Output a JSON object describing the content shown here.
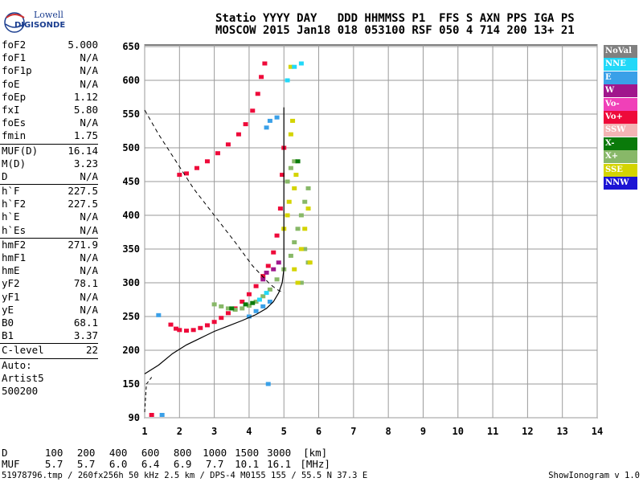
{
  "header": {
    "line1": "Statio YYYY DAY   DDD HHMMSS P1  FFS S AXN PPS IGA PS",
    "line2": "MOSCOW 2015 Jan18 018 053100 RSF 050 4 714 200 13+ 21"
  },
  "logo": {
    "brand1": "Lowell",
    "brand2": "DIGISONDE"
  },
  "params": [
    [
      {
        "label": "foF2",
        "value": "5.000"
      },
      {
        "label": "foF1",
        "value": "N/A"
      },
      {
        "label": "foF1p",
        "value": "N/A"
      },
      {
        "label": "foE",
        "value": "N/A"
      },
      {
        "label": "foEp",
        "value": "1.12"
      },
      {
        "label": "fxI",
        "value": "5.80"
      },
      {
        "label": "foEs",
        "value": "N/A"
      },
      {
        "label": "fmin",
        "value": "1.75"
      }
    ],
    [
      {
        "label": "MUF(D)",
        "value": "16.14"
      },
      {
        "label": "M(D)",
        "value": "3.23"
      },
      {
        "label": "D",
        "value": "N/A"
      }
    ],
    [
      {
        "label": "h`F",
        "value": "227.5"
      },
      {
        "label": "h`F2",
        "value": "227.5"
      },
      {
        "label": "h`E",
        "value": "N/A"
      },
      {
        "label": "h`Es",
        "value": "N/A"
      }
    ],
    [
      {
        "label": "hmF2",
        "value": "271.9"
      },
      {
        "label": "hmF1",
        "value": "N/A"
      },
      {
        "label": "hmE",
        "value": "N/A"
      },
      {
        "label": "yF2",
        "value": "78.1"
      },
      {
        "label": "yF1",
        "value": "N/A"
      },
      {
        "label": "yE",
        "value": "N/A"
      },
      {
        "label": "B0",
        "value": "68.1"
      },
      {
        "label": "B1",
        "value": "3.37"
      }
    ],
    [
      {
        "label": "C-level",
        "value": "22"
      }
    ],
    [
      {
        "label": "Auto:",
        "value": ""
      },
      {
        "label": "Artist5",
        "value": ""
      },
      {
        "label": "500200",
        "value": ""
      }
    ]
  ],
  "legend": [
    {
      "label": "NoVal",
      "color": "#808080"
    },
    {
      "label": "NNE",
      "color": "#22d8f8"
    },
    {
      "label": "E",
      "color": "#3aa0e8"
    },
    {
      "label": "W",
      "color": "#a0168c"
    },
    {
      "label": "Vo-",
      "color": "#f040b8"
    },
    {
      "label": "Vo+",
      "color": "#ee0a3a"
    },
    {
      "label": "SSW",
      "color": "#f4b4b4"
    },
    {
      "label": "X-",
      "color": "#0a7a0a"
    },
    {
      "label": "X+",
      "color": "#88b868"
    },
    {
      "label": "SSE",
      "color": "#d4d400"
    },
    {
      "label": "NNW",
      "color": "#1c14d4"
    }
  ],
  "chart_data": {
    "type": "scatter",
    "xlabel": "",
    "ylabel": "",
    "xlim": [
      1,
      14
    ],
    "ylim": [
      90,
      650
    ],
    "xticks": [
      1,
      2,
      3,
      4,
      5,
      6,
      7,
      8,
      9,
      10,
      11,
      12,
      13,
      14
    ],
    "yticks": [
      90,
      150,
      200,
      250,
      300,
      350,
      400,
      450,
      500,
      550,
      600,
      650
    ],
    "grid": true,
    "series": [
      {
        "name": "Vo+",
        "color": "#ee0a3a",
        "points": [
          [
            1.75,
            238
          ],
          [
            1.9,
            232
          ],
          [
            2.0,
            230
          ],
          [
            2.2,
            229
          ],
          [
            2.4,
            230
          ],
          [
            2.6,
            233
          ],
          [
            2.8,
            237
          ],
          [
            3.0,
            242
          ],
          [
            3.2,
            248
          ],
          [
            3.4,
            255
          ],
          [
            3.6,
            262
          ],
          [
            3.8,
            272
          ],
          [
            4.0,
            283
          ],
          [
            4.2,
            295
          ],
          [
            4.4,
            310
          ],
          [
            4.55,
            325
          ],
          [
            4.7,
            345
          ],
          [
            4.8,
            370
          ],
          [
            4.9,
            410
          ],
          [
            4.95,
            460
          ],
          [
            5.0,
            500
          ],
          [
            2.0,
            460
          ],
          [
            2.2,
            462
          ],
          [
            2.5,
            470
          ],
          [
            2.8,
            480
          ],
          [
            3.1,
            492
          ],
          [
            3.4,
            505
          ],
          [
            3.7,
            520
          ],
          [
            3.9,
            535
          ],
          [
            4.1,
            555
          ],
          [
            4.25,
            580
          ],
          [
            4.35,
            605
          ],
          [
            4.45,
            625
          ],
          [
            1.2,
            95
          ]
        ]
      },
      {
        "name": "X+",
        "color": "#88b868",
        "points": [
          [
            3.0,
            268
          ],
          [
            3.2,
            265
          ],
          [
            3.4,
            262
          ],
          [
            3.6,
            260
          ],
          [
            3.8,
            262
          ],
          [
            4.0,
            266
          ],
          [
            4.2,
            272
          ],
          [
            4.4,
            280
          ],
          [
            4.6,
            290
          ],
          [
            4.8,
            305
          ],
          [
            5.0,
            320
          ],
          [
            5.2,
            340
          ],
          [
            5.3,
            360
          ],
          [
            5.4,
            380
          ],
          [
            5.5,
            400
          ],
          [
            5.6,
            420
          ],
          [
            5.7,
            440
          ],
          [
            5.1,
            450
          ],
          [
            5.2,
            470
          ],
          [
            5.3,
            480
          ],
          [
            5.6,
            350
          ],
          [
            5.7,
            330
          ],
          [
            5.5,
            300
          ]
        ]
      },
      {
        "name": "SSE",
        "color": "#d4d400",
        "points": [
          [
            5.0,
            380
          ],
          [
            5.1,
            400
          ],
          [
            5.15,
            420
          ],
          [
            5.3,
            440
          ],
          [
            5.35,
            460
          ],
          [
            5.5,
            350
          ],
          [
            5.6,
            380
          ],
          [
            5.7,
            410
          ],
          [
            5.75,
            330
          ],
          [
            5.3,
            320
          ],
          [
            5.4,
            300
          ],
          [
            5.2,
            520
          ],
          [
            5.25,
            540
          ],
          [
            5.2,
            620
          ]
        ]
      },
      {
        "name": "E",
        "color": "#3aa0e8",
        "points": [
          [
            1.4,
            252
          ],
          [
            4.0,
            250
          ],
          [
            4.2,
            258
          ],
          [
            4.4,
            265
          ],
          [
            4.6,
            272
          ],
          [
            4.5,
            530
          ],
          [
            4.6,
            540
          ],
          [
            4.8,
            545
          ],
          [
            1.5,
            95
          ],
          [
            4.55,
            150
          ]
        ]
      },
      {
        "name": "NNE",
        "color": "#22d8f8",
        "points": [
          [
            4.3,
            275
          ],
          [
            4.5,
            285
          ],
          [
            5.1,
            600
          ],
          [
            5.3,
            620
          ],
          [
            5.5,
            625
          ]
        ]
      },
      {
        "name": "X-",
        "color": "#0a7a0a",
        "points": [
          [
            3.5,
            262
          ],
          [
            3.9,
            268
          ],
          [
            4.1,
            270
          ],
          [
            5.4,
            480
          ]
        ]
      },
      {
        "name": "W",
        "color": "#a0168c",
        "points": [
          [
            4.4,
            305
          ],
          [
            4.5,
            315
          ],
          [
            4.7,
            320
          ],
          [
            4.85,
            330
          ]
        ]
      }
    ],
    "profile": [
      [
        1,
        165
      ],
      [
        1.4,
        178
      ],
      [
        1.8,
        195
      ],
      [
        2.2,
        208
      ],
      [
        2.6,
        218
      ],
      [
        3.0,
        228
      ],
      [
        3.4,
        236
      ],
      [
        3.8,
        244
      ],
      [
        4.2,
        253
      ],
      [
        4.5,
        262
      ],
      [
        4.7,
        272
      ],
      [
        4.85,
        285
      ],
      [
        4.95,
        300
      ],
      [
        5.0,
        320
      ],
      [
        5.0,
        380
      ],
      [
        5.0,
        440
      ],
      [
        5.0,
        500
      ],
      [
        5.0,
        560
      ]
    ],
    "profile_dashed": [
      [
        1,
        100
      ],
      [
        1.05,
        150
      ],
      [
        1.2,
        160
      ]
    ],
    "profile_top_dashed": [
      [
        1,
        556
      ],
      [
        1.4,
        520
      ],
      [
        1.9,
        480
      ],
      [
        2.4,
        440
      ],
      [
        3.0,
        400
      ],
      [
        3.6,
        360
      ],
      [
        4.1,
        325
      ],
      [
        4.6,
        298
      ],
      [
        4.8,
        290
      ],
      [
        5.0,
        285
      ]
    ],
    "distance_table": {
      "row1_label": "D",
      "row1_values": [
        "100",
        "200",
        "400",
        "600",
        "800",
        "1000",
        "1500",
        "3000",
        "[km]"
      ],
      "row2_label": "MUF",
      "row2_values": [
        "5.7",
        "5.7",
        "6.0",
        "6.4",
        "6.9",
        "7.7",
        "10.1",
        "16.1",
        "[MHz]"
      ]
    }
  },
  "footer": {
    "info": "51978796.tmp / 260fx256h 50 kHz 2.5 km / DPS-4 M0155 155 / 55.5 N 37.3 E",
    "version": "ShowIonogram v 1.0"
  }
}
